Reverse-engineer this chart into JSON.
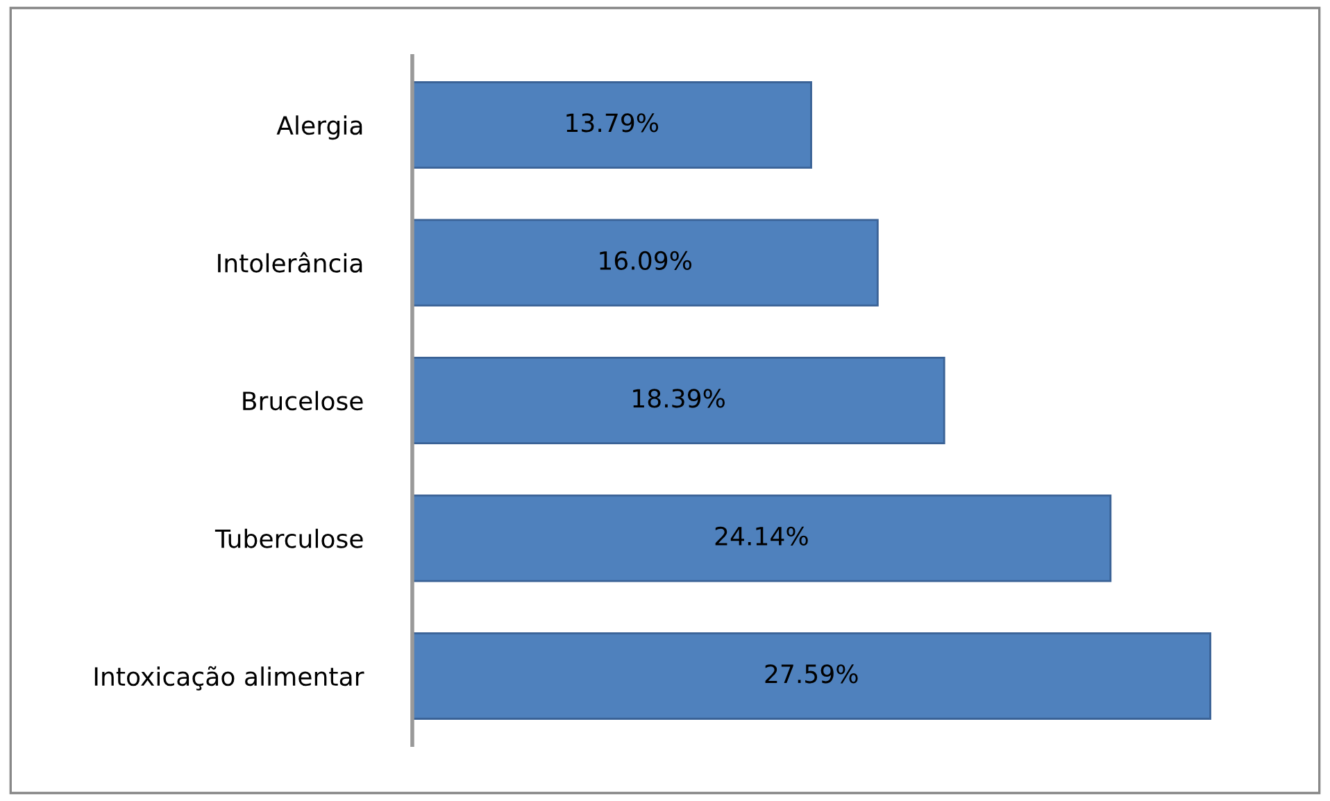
{
  "chart_data": {
    "type": "bar",
    "orientation": "horizontal",
    "categories": [
      "Alergia",
      "Intolerância",
      "Brucelose",
      "Tuberculose",
      "Intoxicação alimentar"
    ],
    "values": [
      13.79,
      16.09,
      18.39,
      24.14,
      27.59
    ],
    "value_labels": [
      "13.79%",
      "16.09%",
      "18.39%",
      "24.14%",
      "27.59%"
    ],
    "color": "#4f81bd",
    "grid": false,
    "legend": false,
    "tick_labels": "y"
  }
}
